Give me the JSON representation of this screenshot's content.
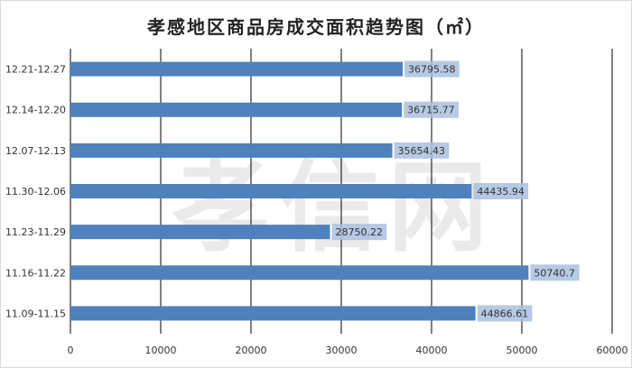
{
  "chart_data": {
    "type": "bar",
    "orientation": "horizontal",
    "title": "孝感地区商品房成交面积趋势图（㎡）",
    "categories": [
      "12.21-12.27",
      "12.14-12.20",
      "12.07-12.13",
      "11.30-12.06",
      "11.23-11.29",
      "11.16-11.22",
      "11.09-11.15"
    ],
    "values": [
      36795.58,
      36715.77,
      35654.43,
      44435.94,
      28750.22,
      50740.7,
      44866.61
    ],
    "value_labels": [
      "36795.58",
      "36715.77",
      "35654.43",
      "44435.94",
      "28750.22",
      "50740.7",
      "44866.61"
    ],
    "xlim": [
      0,
      60000
    ],
    "xticks": [
      0,
      10000,
      20000,
      30000,
      40000,
      50000,
      60000
    ],
    "xlabel": "",
    "ylabel": "",
    "grid": "vertical",
    "colors": {
      "bar": "#4f81bd",
      "label_bg": "#a9c0e1"
    }
  },
  "watermark": "孝信网"
}
